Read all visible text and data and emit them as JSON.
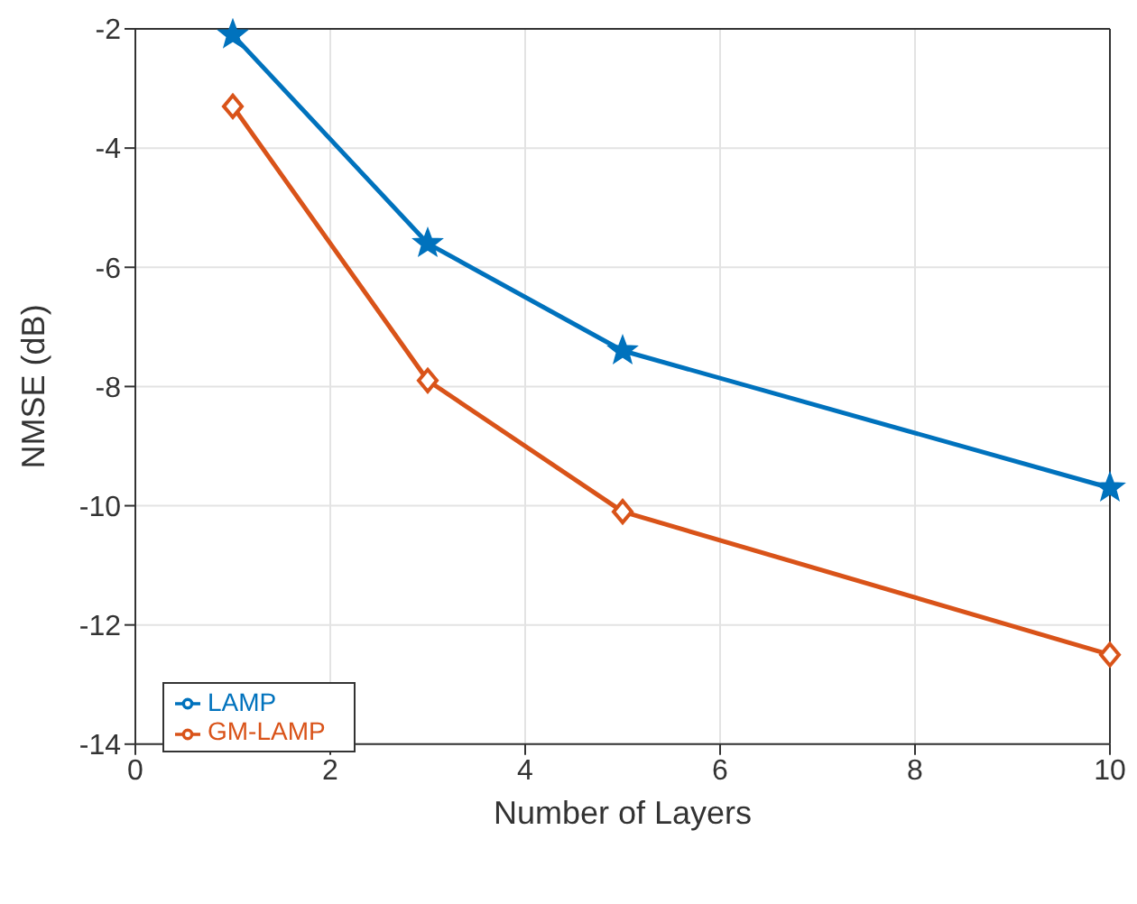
{
  "chart_data": {
    "type": "line",
    "xlabel": "Number of Layers",
    "ylabel": "NMSE (dB)",
    "x": [
      1,
      3,
      5,
      10
    ],
    "series": [
      {
        "name": "LAMP",
        "color": "#0072bd",
        "values": [
          -2.1,
          -5.6,
          -7.4,
          -9.7
        ],
        "marker": "star"
      },
      {
        "name": "GM-LAMP",
        "color": "#d95319",
        "values": [
          -3.3,
          -7.9,
          -10.1,
          -12.5
        ],
        "marker": "diamond"
      }
    ],
    "xlim": [
      0,
      10
    ],
    "xticks": [
      0,
      2,
      4,
      6,
      8,
      10
    ],
    "ylim": [
      -14,
      -2
    ],
    "yticks": [
      -14,
      -12,
      -10,
      -8,
      -6,
      -4,
      -2
    ],
    "grid": true,
    "legend": "bottom left"
  }
}
